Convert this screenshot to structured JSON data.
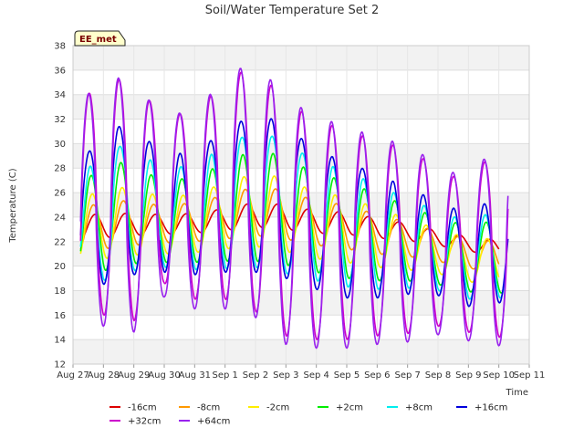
{
  "chart_data": {
    "type": "line",
    "title": "Soil/Water Temperature Set 2",
    "xlabel": "Time",
    "ylabel": "Temperature (C)",
    "ylim": [
      12,
      38
    ],
    "yticks": [
      12,
      14,
      16,
      18,
      20,
      22,
      24,
      26,
      28,
      30,
      32,
      34,
      36,
      38
    ],
    "xlim": [
      "Aug 27",
      "Sep 11"
    ],
    "xticks": [
      "Aug 27",
      "Aug 28",
      "Aug 29",
      "Aug 30",
      "Aug 31",
      "Sep 1",
      "Sep 2",
      "Sep 3",
      "Sep 4",
      "Sep 5",
      "Sep 6",
      "Sep 7",
      "Sep 8",
      "Sep 9",
      "Sep 10",
      "Sep 11"
    ],
    "grid": true,
    "legend_position": "bottom",
    "annotation": "EE_met",
    "series": [
      {
        "name": "-16cm",
        "color": "#dd0000",
        "x_start": 0.25,
        "x_end": 14.0,
        "mean": [
          23.0,
          23.3,
          23.4,
          23.4,
          23.5,
          23.8,
          24.2,
          24.0,
          23.6,
          23.5,
          23.1,
          22.8,
          22.3,
          21.8,
          21.5
        ],
        "amp": [
          1.0,
          1.0,
          0.9,
          0.8,
          0.8,
          0.9,
          1.0,
          1.0,
          0.9,
          0.9,
          0.8,
          0.7,
          0.6,
          0.6,
          0.6
        ],
        "phase": 0.72
      },
      {
        "name": "-8cm",
        "color": "#ff9900",
        "x_start": 0.25,
        "x_end": 14.0,
        "mean": [
          22.6,
          23.4,
          23.5,
          23.4,
          23.6,
          24.0,
          24.5,
          24.2,
          23.5,
          23.2,
          22.6,
          22.2,
          21.6,
          21.0,
          20.8
        ],
        "amp": [
          1.6,
          2.0,
          1.8,
          1.5,
          1.6,
          1.8,
          2.0,
          2.0,
          1.8,
          1.8,
          1.6,
          1.4,
          1.2,
          1.2,
          1.2
        ],
        "phase": 0.66
      },
      {
        "name": "-2cm",
        "color": "#ffee00",
        "x_start": 0.25,
        "x_end": 14.0,
        "mean": [
          22.4,
          23.6,
          23.6,
          23.3,
          23.5,
          24.1,
          24.6,
          24.2,
          23.3,
          23.0,
          22.3,
          21.8,
          21.2,
          20.5,
          20.4
        ],
        "amp": [
          2.3,
          3.0,
          2.7,
          2.3,
          2.4,
          2.7,
          3.0,
          3.0,
          2.7,
          2.7,
          2.4,
          2.1,
          1.8,
          1.8,
          1.8
        ],
        "phase": 0.62
      },
      {
        "name": "+2cm",
        "color": "#00ee00",
        "x_start": 0.25,
        "x_end": 14.2,
        "mean": [
          22.4,
          24.2,
          24.2,
          23.6,
          23.8,
          24.4,
          25.0,
          24.5,
          23.5,
          23.0,
          22.3,
          21.9,
          21.2,
          20.6,
          20.8
        ],
        "amp": [
          3.0,
          4.6,
          4.0,
          3.3,
          3.5,
          4.0,
          4.6,
          4.4,
          4.0,
          4.0,
          3.5,
          3.1,
          2.7,
          2.7,
          3.0
        ],
        "phase": 0.58
      },
      {
        "name": "+8cm",
        "color": "#00eeee",
        "x_start": 0.25,
        "x_end": 14.2,
        "mean": [
          22.3,
          24.4,
          24.6,
          23.9,
          24.0,
          24.8,
          25.5,
          24.8,
          23.6,
          23.1,
          22.3,
          21.9,
          21.2,
          20.5,
          21.0
        ],
        "amp": [
          3.5,
          5.6,
          5.0,
          4.0,
          4.3,
          5.0,
          5.6,
          5.4,
          4.8,
          4.8,
          4.2,
          3.7,
          3.2,
          3.2,
          3.6
        ],
        "phase": 0.55
      },
      {
        "name": "+16cm",
        "color": "#0000dd",
        "x_start": 0.25,
        "x_end": 14.3,
        "mean": [
          22.5,
          25.0,
          25.3,
          24.3,
          24.3,
          25.3,
          26.0,
          25.3,
          23.7,
          23.0,
          22.4,
          22.1,
          21.4,
          20.5,
          21.4
        ],
        "amp": [
          4.5,
          6.5,
          6.0,
          4.8,
          5.0,
          5.8,
          6.5,
          6.3,
          5.6,
          5.6,
          5.0,
          4.4,
          3.8,
          3.8,
          4.4
        ],
        "phase": 0.52
      },
      {
        "name": "+32cm",
        "color": "#cc00cc",
        "x_start": 0.25,
        "x_end": 14.3,
        "mean": [
          23.5,
          26.0,
          25.0,
          25.6,
          24.8,
          26.3,
          26.3,
          23.8,
          23.0,
          22.5,
          22.3,
          22.0,
          21.6,
          20.6,
          22.2
        ],
        "amp": [
          8.5,
          10.0,
          9.5,
          7.0,
          7.5,
          9.0,
          10.0,
          9.5,
          9.0,
          8.5,
          8.0,
          7.5,
          6.5,
          6.0,
          8.0
        ],
        "phase": 0.52
      },
      {
        "name": "+64cm",
        "color": "#9922ee",
        "x_start": 0.25,
        "x_end": 14.3,
        "mean": [
          23.0,
          25.6,
          24.6,
          25.0,
          24.5,
          26.0,
          26.3,
          23.6,
          22.8,
          22.3,
          22.1,
          21.8,
          21.4,
          20.4,
          22.0
        ],
        "amp": [
          9.0,
          10.5,
          10.0,
          7.5,
          8.0,
          9.5,
          10.5,
          10.0,
          9.5,
          9.0,
          8.5,
          8.0,
          7.0,
          6.5,
          8.5
        ],
        "phase": 0.5
      }
    ]
  }
}
